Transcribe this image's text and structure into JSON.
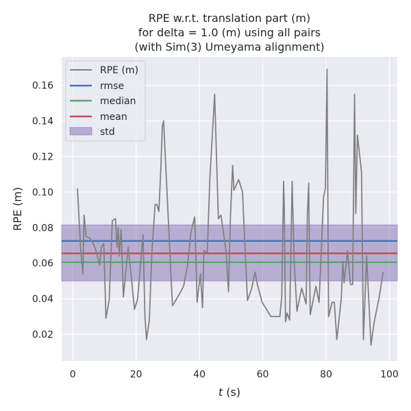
{
  "chart_data": {
    "type": "line",
    "title": [
      "RPE w.r.t. translation part (m)",
      "for delta = 1.0 (m) using all pairs",
      "(with Sim(3) Umeyama alignment)"
    ],
    "xlabel_var": "t",
    "xlabel_unit": " (s)",
    "ylabel": "RPE (m)",
    "xlim": [
      -3.5,
      102.5
    ],
    "ylim": [
      0.005,
      0.176
    ],
    "xticks": [
      0,
      20,
      40,
      60,
      80,
      100
    ],
    "yticks": [
      0.02,
      0.04,
      0.06,
      0.08,
      0.1,
      0.12,
      0.14,
      0.16
    ],
    "ytick_labels": [
      "0.02",
      "0.04",
      "0.06",
      "0.08",
      "0.10",
      "0.12",
      "0.14",
      "0.16"
    ],
    "grid": true,
    "legend_position": "top-left",
    "series": [
      {
        "name": "RPE (m)",
        "color": "#808080",
        "x": [
          1.5,
          2.5,
          3.2,
          3.6,
          4.2,
          5.5,
          6.5,
          7.5,
          8.5,
          9.0,
          9.8,
          10.5,
          11.5,
          12.5,
          13.5,
          14.0,
          14.4,
          14.7,
          15.3,
          16.0,
          17.5,
          18.5,
          19.5,
          20.5,
          21.5,
          22.2,
          22.8,
          23.3,
          24.2,
          25.0,
          26.0,
          26.6,
          27.2,
          27.8,
          28.3,
          28.7,
          31.5,
          33.8,
          35.0,
          36.2,
          37.3,
          38.5,
          39.3,
          40.3,
          41.0,
          41.4,
          42.5,
          43.3,
          44.8,
          46.0,
          46.8,
          48.4,
          49.2,
          49.8,
          50.5,
          50.9,
          52.4,
          53.6,
          55.2,
          56.4,
          57.6,
          58.3,
          59.8,
          62.6,
          65.4,
          66.0,
          66.6,
          66.8,
          67.2,
          67.7,
          68.5,
          69.3,
          69.9,
          70.8,
          72.3,
          73.7,
          74.1,
          74.5,
          75.0,
          76.8,
          77.8,
          79.2,
          79.8,
          80.3,
          80.8,
          81.9,
          82.6,
          83.4,
          84.8,
          85.3,
          85.7,
          86.8,
          87.7,
          88.4,
          89.0,
          89.4,
          89.9,
          91.2,
          91.8,
          92.8,
          94.2,
          95.2,
          96.8,
          98.0
        ],
        "y": [
          0.102,
          0.068,
          0.054,
          0.087,
          0.075,
          0.074,
          0.071,
          0.066,
          0.059,
          0.069,
          0.071,
          0.029,
          0.039,
          0.084,
          0.085,
          0.069,
          0.08,
          0.064,
          0.079,
          0.041,
          0.069,
          0.052,
          0.034,
          0.04,
          0.061,
          0.076,
          0.03,
          0.017,
          0.028,
          0.066,
          0.093,
          0.093,
          0.089,
          0.112,
          0.137,
          0.14,
          0.036,
          0.043,
          0.047,
          0.058,
          0.077,
          0.086,
          0.038,
          0.054,
          0.035,
          0.067,
          0.066,
          0.107,
          0.155,
          0.085,
          0.087,
          0.067,
          0.044,
          0.086,
          0.115,
          0.101,
          0.107,
          0.1,
          0.039,
          0.045,
          0.055,
          0.048,
          0.038,
          0.03,
          0.03,
          0.041,
          0.106,
          0.092,
          0.027,
          0.032,
          0.028,
          0.106,
          0.062,
          0.033,
          0.046,
          0.037,
          0.087,
          0.105,
          0.031,
          0.047,
          0.038,
          0.097,
          0.102,
          0.169,
          0.03,
          0.038,
          0.038,
          0.017,
          0.04,
          0.061,
          0.049,
          0.067,
          0.048,
          0.048,
          0.155,
          0.088,
          0.132,
          0.111,
          0.017,
          0.064,
          0.014,
          0.027,
          0.041,
          0.055
        ]
      }
    ],
    "reference_lines": [
      {
        "name": "rmse",
        "color": "#4c72b0",
        "value": 0.0725
      },
      {
        "name": "median",
        "color": "#55a868",
        "value": 0.0605
      },
      {
        "name": "mean",
        "color": "#c44e52",
        "value": 0.0655
      }
    ],
    "std_band": {
      "name": "std",
      "color": "#8172b2",
      "lower": 0.05,
      "upper": 0.0815
    },
    "legend": [
      "RPE (m)",
      "rmse",
      "median",
      "mean",
      "std"
    ]
  }
}
